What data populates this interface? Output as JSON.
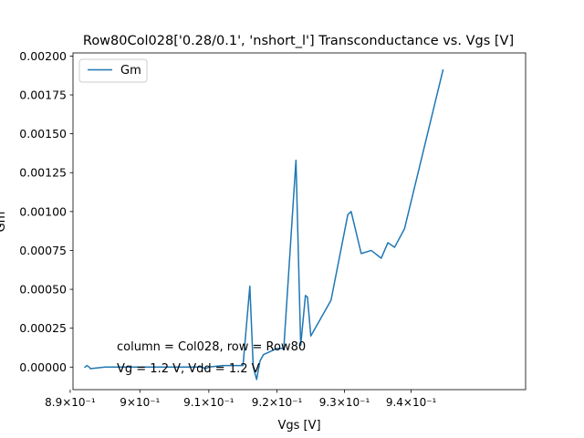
{
  "chart_data": {
    "type": "line",
    "title": "Row80Col028['0.28/0.1', 'nshort_l'] Transconductance vs. Vgs [V]",
    "xlabel": "Vgs [V]",
    "ylabel": "Gm",
    "x_scale": "log",
    "xlim": [
      0.8904,
      0.9574
    ],
    "ylim": [
      -0.000145,
      0.00202
    ],
    "x_ticks": [
      {
        "value": 0.89,
        "label": "8.9×10⁻¹"
      },
      {
        "value": 0.9,
        "label": "9×10⁻¹"
      },
      {
        "value": 0.91,
        "label": "9.1×10⁻¹"
      },
      {
        "value": 0.92,
        "label": "9.2×10⁻¹"
      },
      {
        "value": 0.93,
        "label": "9.3×10⁻¹"
      },
      {
        "value": 0.94,
        "label": "9.4×10⁻¹"
      }
    ],
    "y_ticks": [
      {
        "value": 0.0,
        "label": "0.00000"
      },
      {
        "value": 0.00025,
        "label": "0.00025"
      },
      {
        "value": 0.0005,
        "label": "0.00050"
      },
      {
        "value": 0.00075,
        "label": "0.00075"
      },
      {
        "value": 0.001,
        "label": "0.00100"
      },
      {
        "value": 0.00125,
        "label": "0.00125"
      },
      {
        "value": 0.0015,
        "label": "0.00150"
      },
      {
        "value": 0.00175,
        "label": "0.00175"
      },
      {
        "value": 0.002,
        "label": "0.00200"
      }
    ],
    "legend": {
      "placement": "top-left"
    },
    "annotations": [
      "column = Col028, row = Row80",
      "Vg = 1.2 V, Vdd = 1.2 V"
    ],
    "grid": false,
    "series": [
      {
        "name": "Gm",
        "color": "#1f77b4",
        "x": [
          0.8921,
          0.8924,
          0.8927,
          0.8929,
          0.895,
          0.9,
          0.905,
          0.909,
          0.9095,
          0.91,
          0.912,
          0.915,
          0.916,
          0.9165,
          0.917,
          0.9172,
          0.9175,
          0.918,
          0.92,
          0.921,
          0.9228,
          0.9235,
          0.9242,
          0.9245,
          0.925,
          0.928,
          0.9305,
          0.931,
          0.9325,
          0.934,
          0.9355,
          0.9365,
          0.9375,
          0.939,
          0.9448
        ],
        "y": [
          0.0,
          1e-05,
          0.0,
          -1e-05,
          0.0,
          0.0,
          0.0,
          0.0,
          -1e-05,
          0.0,
          1e-05,
          1e-05,
          0.00052,
          0.0,
          -8e-05,
          -3e-05,
          4e-05,
          8e-05,
          0.00012,
          0.00012,
          0.00133,
          0.00014,
          0.00046,
          0.00045,
          0.0002,
          0.00043,
          0.00098,
          0.001,
          0.00073,
          0.00075,
          0.0007,
          0.0008,
          0.00077,
          0.00089,
          0.00191
        ]
      }
    ]
  }
}
